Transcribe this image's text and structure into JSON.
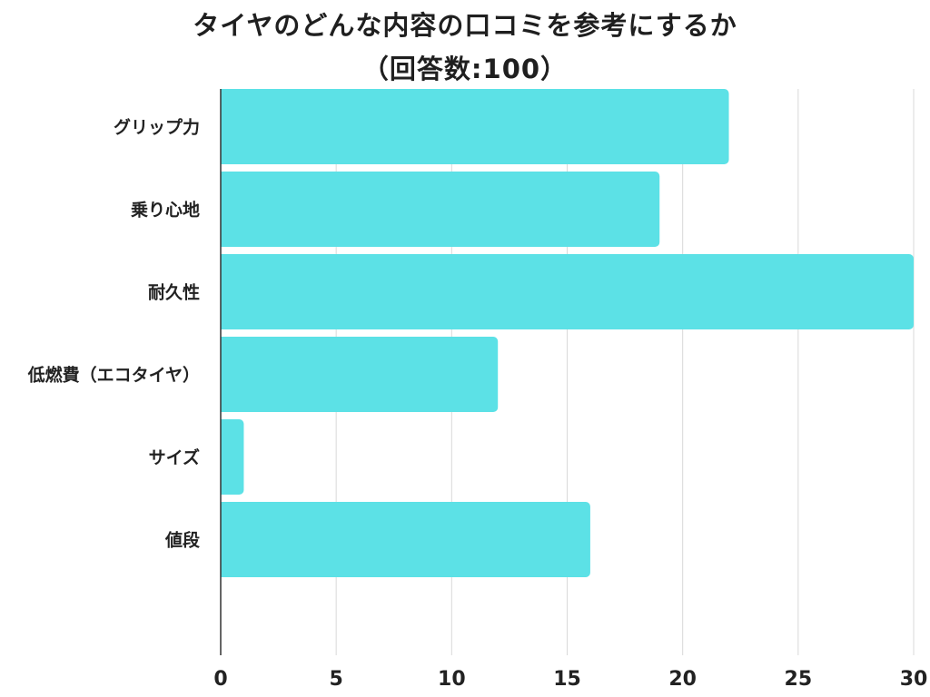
{
  "chart_data": {
    "type": "bar",
    "orientation": "horizontal",
    "title": "タイヤのどんな内容の口コミを参考にするか",
    "subtitle": "（回答数:100）",
    "categories": [
      "グリップ力",
      "乗り心地",
      "耐久性",
      "低燃費（エコタイヤ）",
      "サイズ",
      "値段"
    ],
    "values": [
      22,
      19,
      30,
      12,
      1,
      16
    ],
    "xlim": [
      0,
      30
    ],
    "xticks": [
      "0",
      "5",
      "10",
      "15",
      "20",
      "25",
      "30"
    ],
    "xlabel": "",
    "ylabel": "",
    "grid": true,
    "bar_color": "#5ce1e6",
    "grid_color": "#d9d9d9",
    "axis_color": "#333333"
  }
}
